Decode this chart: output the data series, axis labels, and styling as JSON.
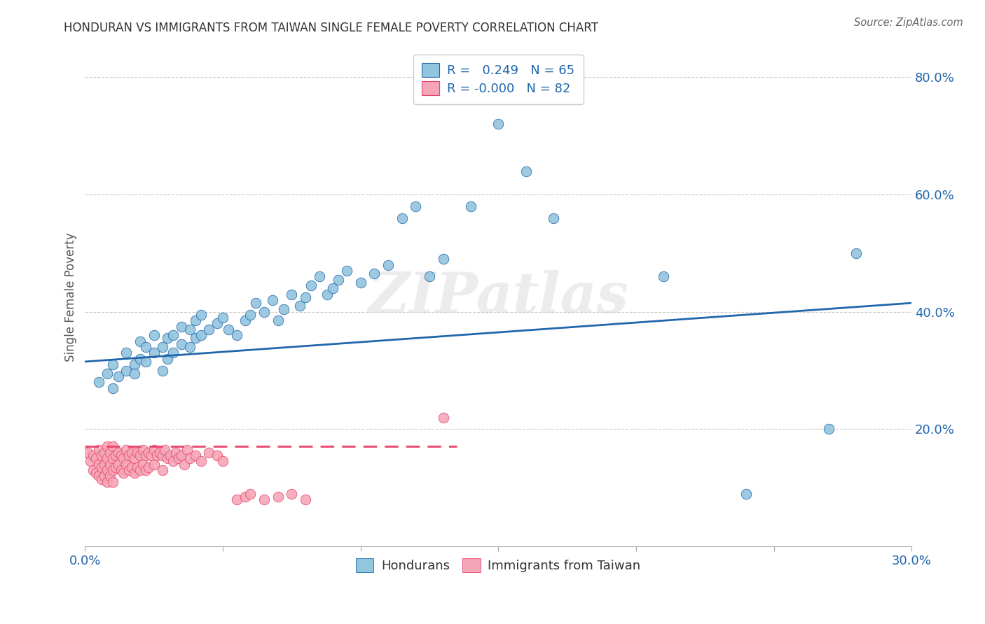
{
  "title": "HONDURAN VS IMMIGRANTS FROM TAIWAN SINGLE FEMALE POVERTY CORRELATION CHART",
  "source": "Source: ZipAtlas.com",
  "ylabel": "Single Female Poverty",
  "xlim": [
    0.0,
    0.3
  ],
  "ylim": [
    0.0,
    0.85
  ],
  "x_tick_positions": [
    0.0,
    0.05,
    0.1,
    0.15,
    0.2,
    0.25,
    0.3
  ],
  "x_tick_labels": [
    "0.0%",
    "",
    "",
    "",
    "",
    "",
    "30.0%"
  ],
  "y_tick_positions": [
    0.0,
    0.2,
    0.4,
    0.6,
    0.8
  ],
  "y_tick_labels": [
    "",
    "20.0%",
    "40.0%",
    "60.0%",
    "80.0%"
  ],
  "legend_bottom_label1": "Hondurans",
  "legend_bottom_label2": "Immigrants from Taiwan",
  "color_blue": "#92c5de",
  "color_pink": "#f4a6b8",
  "blue_line_color": "#2166ac",
  "pink_line_color": "#e8436a",
  "watermark": "ZIPatlas",
  "blue_R": 0.249,
  "blue_N": 65,
  "pink_R": -0.0,
  "pink_N": 82,
  "blue_scatter_x": [
    0.005,
    0.008,
    0.01,
    0.01,
    0.012,
    0.015,
    0.015,
    0.018,
    0.018,
    0.02,
    0.02,
    0.022,
    0.022,
    0.025,
    0.025,
    0.028,
    0.028,
    0.03,
    0.03,
    0.032,
    0.032,
    0.035,
    0.035,
    0.038,
    0.038,
    0.04,
    0.04,
    0.042,
    0.042,
    0.045,
    0.048,
    0.05,
    0.052,
    0.055,
    0.058,
    0.06,
    0.062,
    0.065,
    0.068,
    0.07,
    0.072,
    0.075,
    0.078,
    0.08,
    0.082,
    0.085,
    0.088,
    0.09,
    0.092,
    0.095,
    0.1,
    0.105,
    0.11,
    0.115,
    0.12,
    0.125,
    0.13,
    0.14,
    0.15,
    0.16,
    0.17,
    0.21,
    0.24,
    0.27,
    0.28
  ],
  "blue_scatter_y": [
    0.28,
    0.295,
    0.27,
    0.31,
    0.29,
    0.3,
    0.33,
    0.31,
    0.295,
    0.32,
    0.35,
    0.315,
    0.34,
    0.33,
    0.36,
    0.3,
    0.34,
    0.32,
    0.355,
    0.33,
    0.36,
    0.345,
    0.375,
    0.34,
    0.37,
    0.355,
    0.385,
    0.36,
    0.395,
    0.37,
    0.38,
    0.39,
    0.37,
    0.36,
    0.385,
    0.395,
    0.415,
    0.4,
    0.42,
    0.385,
    0.405,
    0.43,
    0.41,
    0.425,
    0.445,
    0.46,
    0.43,
    0.44,
    0.455,
    0.47,
    0.45,
    0.465,
    0.48,
    0.56,
    0.58,
    0.46,
    0.49,
    0.58,
    0.72,
    0.64,
    0.56,
    0.46,
    0.09,
    0.2,
    0.5
  ],
  "pink_scatter_x": [
    0.001,
    0.002,
    0.003,
    0.003,
    0.004,
    0.004,
    0.005,
    0.005,
    0.005,
    0.006,
    0.006,
    0.006,
    0.007,
    0.007,
    0.007,
    0.008,
    0.008,
    0.008,
    0.008,
    0.009,
    0.009,
    0.009,
    0.01,
    0.01,
    0.01,
    0.01,
    0.011,
    0.011,
    0.012,
    0.012,
    0.013,
    0.013,
    0.014,
    0.014,
    0.015,
    0.015,
    0.016,
    0.016,
    0.017,
    0.017,
    0.018,
    0.018,
    0.019,
    0.019,
    0.02,
    0.02,
    0.021,
    0.021,
    0.022,
    0.022,
    0.023,
    0.023,
    0.024,
    0.025,
    0.025,
    0.026,
    0.027,
    0.028,
    0.028,
    0.029,
    0.03,
    0.031,
    0.032,
    0.033,
    0.034,
    0.035,
    0.036,
    0.037,
    0.038,
    0.04,
    0.042,
    0.045,
    0.048,
    0.05,
    0.055,
    0.058,
    0.06,
    0.065,
    0.07,
    0.075,
    0.08,
    0.13
  ],
  "pink_scatter_y": [
    0.16,
    0.145,
    0.155,
    0.13,
    0.15,
    0.125,
    0.165,
    0.14,
    0.12,
    0.155,
    0.135,
    0.115,
    0.16,
    0.14,
    0.12,
    0.17,
    0.15,
    0.13,
    0.11,
    0.16,
    0.14,
    0.12,
    0.17,
    0.15,
    0.13,
    0.11,
    0.155,
    0.135,
    0.16,
    0.14,
    0.155,
    0.13,
    0.15,
    0.125,
    0.165,
    0.14,
    0.155,
    0.13,
    0.16,
    0.135,
    0.15,
    0.125,
    0.16,
    0.135,
    0.155,
    0.13,
    0.165,
    0.14,
    0.155,
    0.13,
    0.16,
    0.135,
    0.155,
    0.165,
    0.14,
    0.155,
    0.16,
    0.155,
    0.13,
    0.165,
    0.15,
    0.155,
    0.145,
    0.16,
    0.15,
    0.155,
    0.14,
    0.165,
    0.15,
    0.155,
    0.145,
    0.16,
    0.155,
    0.145,
    0.08,
    0.085,
    0.09,
    0.08,
    0.085,
    0.09,
    0.08,
    0.22
  ],
  "blue_line_x": [
    0.0,
    0.3
  ],
  "blue_line_y": [
    0.315,
    0.415
  ],
  "pink_line_x": [
    0.0,
    0.135
  ],
  "pink_line_y": [
    0.17,
    0.17
  ],
  "background_color": "#ffffff",
  "grid_color": "#c8c8c8"
}
